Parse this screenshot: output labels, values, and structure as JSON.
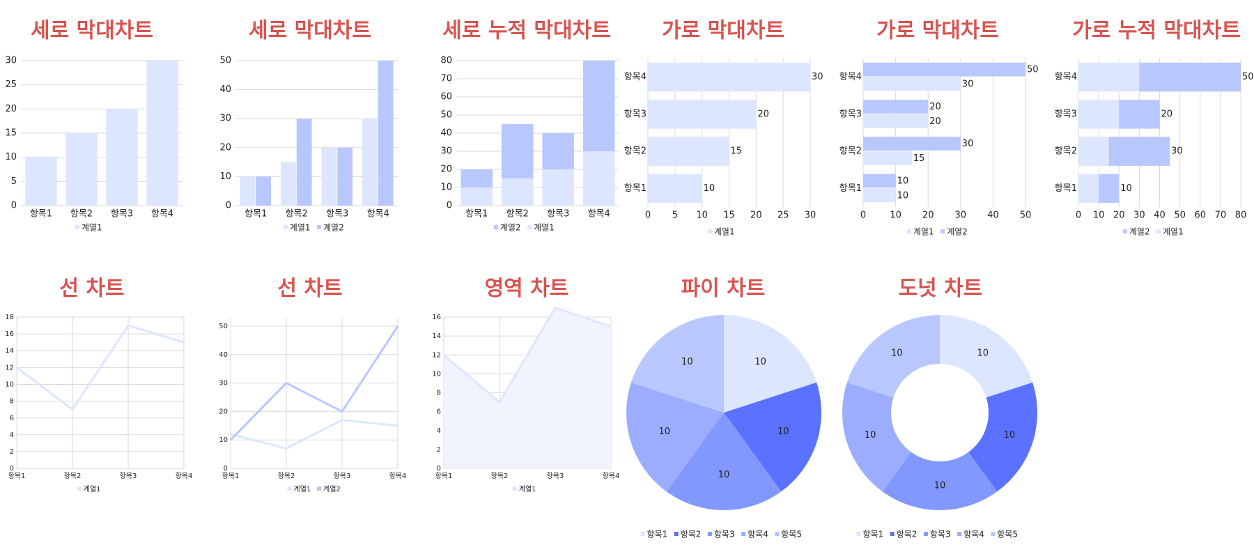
{
  "colors": {
    "title": "#d9534f",
    "series1": "#dde6ff",
    "series2": "#b8c8ff",
    "pie": [
      "#dde6ff",
      "#5a72ff",
      "#8398ff",
      "#9cadff",
      "#b8c8ff"
    ],
    "area_fill": "#f1f4ff",
    "grid": "#d9d9d9"
  },
  "chart_data": [
    {
      "id": "c1",
      "type": "bar",
      "orientation": "vertical",
      "stacked": false,
      "title": "세로 막대차트",
      "categories": [
        "항목1",
        "항목2",
        "항목3",
        "항목4"
      ],
      "series": [
        {
          "name": "계열1",
          "values": [
            10,
            15,
            20,
            30
          ]
        }
      ],
      "ylim": [
        0,
        30
      ],
      "ticks": [
        0,
        5,
        10,
        15,
        20,
        25,
        30
      ],
      "grid": true,
      "legend": "bottom"
    },
    {
      "id": "c2",
      "type": "bar",
      "orientation": "vertical",
      "stacked": false,
      "title": "세로 막대차트",
      "categories": [
        "항목1",
        "항목2",
        "항목3",
        "항목4"
      ],
      "series": [
        {
          "name": "계열1",
          "values": [
            10,
            15,
            20,
            30
          ]
        },
        {
          "name": "계열2",
          "values": [
            10,
            30,
            20,
            50
          ]
        }
      ],
      "ylim": [
        0,
        50
      ],
      "ticks": [
        0,
        10,
        20,
        30,
        40,
        50
      ],
      "grid": true,
      "legend": "bottom"
    },
    {
      "id": "c3",
      "type": "bar",
      "orientation": "vertical",
      "stacked": true,
      "title": "세로 누적 막대차트",
      "categories": [
        "항목1",
        "항목2",
        "항목3",
        "항목4"
      ],
      "series": [
        {
          "name": "계열1",
          "values": [
            10,
            15,
            20,
            30
          ]
        },
        {
          "name": "계열2",
          "values": [
            10,
            30,
            20,
            50
          ]
        }
      ],
      "legend_order": [
        "계열2",
        "계열1"
      ],
      "ylim": [
        0,
        80
      ],
      "ticks": [
        0,
        10,
        20,
        30,
        40,
        50,
        60,
        70,
        80
      ],
      "grid": true,
      "legend": "bottom"
    },
    {
      "id": "c4",
      "type": "bar",
      "orientation": "horizontal",
      "stacked": false,
      "title": "가로 막대차트",
      "categories": [
        "항목1",
        "항목2",
        "항목3",
        "항목4"
      ],
      "series": [
        {
          "name": "계열1",
          "values": [
            10,
            15,
            20,
            30
          ]
        }
      ],
      "xlim": [
        0,
        30
      ],
      "ticks": [
        0,
        5,
        10,
        15,
        20,
        25,
        30
      ],
      "data_labels": true,
      "grid": true,
      "legend": "bottom"
    },
    {
      "id": "c5",
      "type": "bar",
      "orientation": "horizontal",
      "stacked": false,
      "title": "가로 막대차트",
      "categories": [
        "항목1",
        "항목2",
        "항목3",
        "항목4"
      ],
      "series": [
        {
          "name": "계열1",
          "values": [
            10,
            15,
            20,
            30
          ]
        },
        {
          "name": "계열2",
          "values": [
            10,
            30,
            20,
            50
          ]
        }
      ],
      "xlim": [
        0,
        50
      ],
      "ticks": [
        0,
        10,
        20,
        30,
        40,
        50
      ],
      "data_labels": true,
      "grid": true,
      "legend": "bottom"
    },
    {
      "id": "c6",
      "type": "bar",
      "orientation": "horizontal",
      "stacked": true,
      "title": "가로 누적 막대차트",
      "categories": [
        "항목1",
        "항목2",
        "항목3",
        "항목4"
      ],
      "series": [
        {
          "name": "계열1",
          "values": [
            10,
            15,
            20,
            30
          ]
        },
        {
          "name": "계열2",
          "values": [
            10,
            30,
            20,
            50
          ]
        }
      ],
      "legend_order": [
        "계열2",
        "계열1"
      ],
      "xlim": [
        0,
        80
      ],
      "ticks": [
        0,
        10,
        20,
        30,
        40,
        50,
        60,
        70,
        80
      ],
      "data_labels": true,
      "grid": true,
      "legend": "bottom"
    },
    {
      "id": "c7",
      "type": "line",
      "title": "선 차트",
      "categories": [
        "항목1",
        "항목2",
        "항목3",
        "항목4"
      ],
      "series": [
        {
          "name": "계열1",
          "values": [
            12,
            7,
            17,
            15
          ]
        }
      ],
      "ylim": [
        0,
        18
      ],
      "ticks": [
        0,
        2,
        4,
        6,
        8,
        10,
        12,
        14,
        16,
        18
      ],
      "grid": true,
      "legend": "bottom"
    },
    {
      "id": "c8",
      "type": "line",
      "title": "선 차트",
      "categories": [
        "항목1",
        "항목2",
        "항목3",
        "항목4"
      ],
      "series": [
        {
          "name": "계열1",
          "values": [
            12,
            7,
            17,
            15
          ]
        },
        {
          "name": "계열2",
          "values": [
            10,
            30,
            20,
            50
          ]
        }
      ],
      "ylim": [
        0,
        50
      ],
      "ticks": [
        0,
        10,
        20,
        30,
        40,
        50
      ],
      "grid": true,
      "legend": "bottom"
    },
    {
      "id": "c9",
      "type": "area",
      "title": "영역 차트",
      "categories": [
        "항목1",
        "항목2",
        "항목3",
        "항목4"
      ],
      "series": [
        {
          "name": "계열1",
          "values": [
            12,
            7,
            17,
            15
          ]
        }
      ],
      "ylim": [
        0,
        16
      ],
      "ticks": [
        0,
        2,
        4,
        6,
        8,
        10,
        12,
        14,
        16
      ],
      "grid": true,
      "legend": "bottom"
    },
    {
      "id": "c10",
      "type": "pie",
      "title": "파이 차트",
      "categories": [
        "항목1",
        "항목2",
        "항목3",
        "항목4",
        "항목5"
      ],
      "values": [
        10,
        10,
        10,
        10,
        10
      ],
      "data_labels": true,
      "legend": "bottom"
    },
    {
      "id": "c11",
      "type": "pie",
      "donut": true,
      "title": "도넛 차트",
      "categories": [
        "항목1",
        "항목2",
        "항목3",
        "항목4",
        "항목5"
      ],
      "values": [
        10,
        10,
        10,
        10,
        10
      ],
      "data_labels": true,
      "legend": "bottom"
    }
  ]
}
